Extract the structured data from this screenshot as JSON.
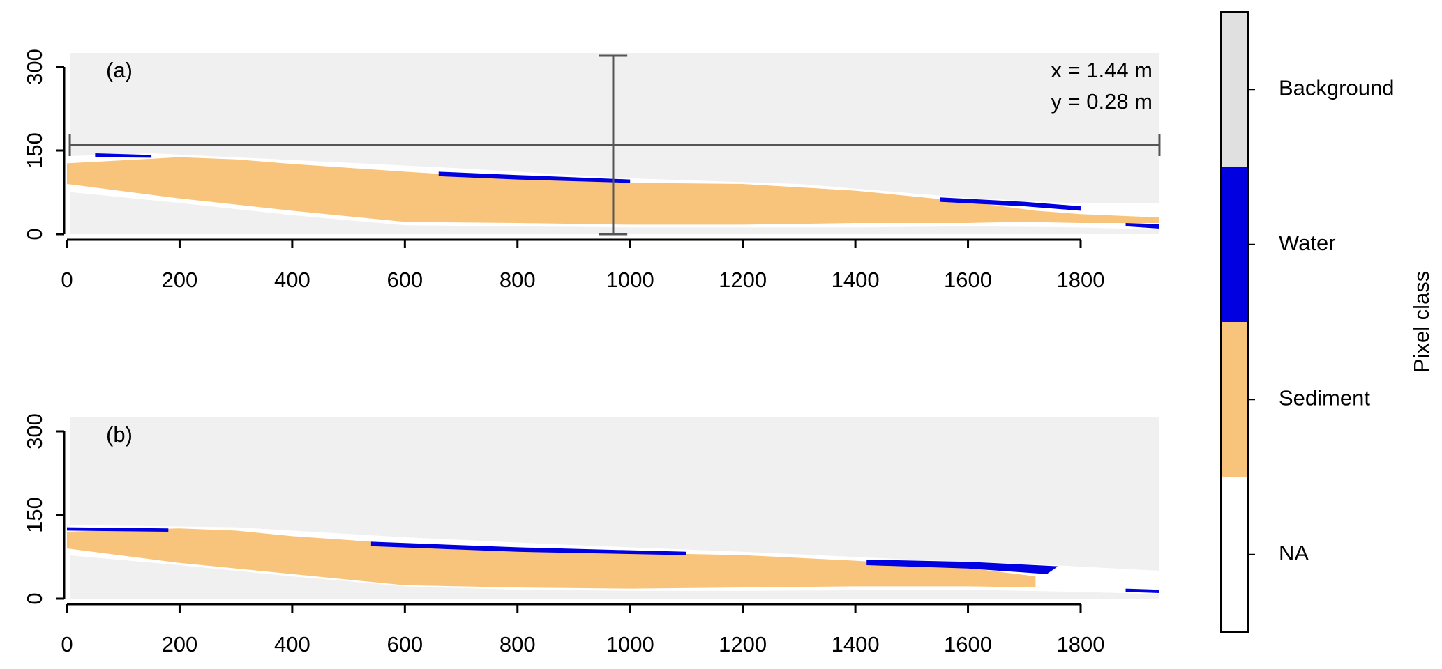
{
  "chart_data": [
    {
      "type": "raster",
      "label": "(a)",
      "annotations": [
        "x = 1.44 m",
        "y = 0.28 m"
      ],
      "xlim": [
        0,
        1940
      ],
      "ylim": [
        0,
        325
      ],
      "xticks": [
        0,
        200,
        400,
        600,
        800,
        1000,
        1200,
        1400,
        1600,
        1800
      ],
      "yticks": [
        0,
        150,
        300
      ]
    },
    {
      "type": "raster",
      "label": "(b)",
      "xlim": [
        0,
        1940
      ],
      "ylim": [
        0,
        325
      ],
      "xticks": [
        0,
        200,
        400,
        600,
        800,
        1000,
        1200,
        1400,
        1600,
        1800
      ],
      "yticks": [
        0,
        150,
        300
      ]
    }
  ],
  "legend": {
    "title": "Pixel class",
    "classes": [
      {
        "name": "NA",
        "color": "#ffffff"
      },
      {
        "name": "Sediment",
        "color": "#f8c47c"
      },
      {
        "name": "Water",
        "color": "#0000e0"
      },
      {
        "name": "Background",
        "color": "#e0e0e0"
      }
    ]
  }
}
